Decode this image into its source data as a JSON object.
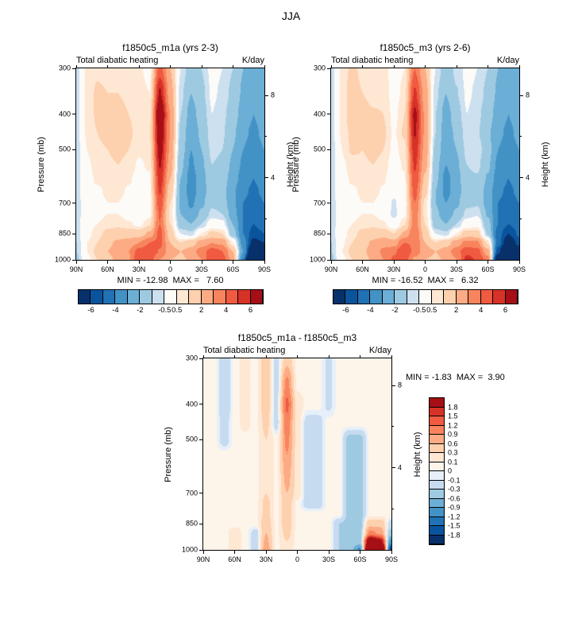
{
  "page": {
    "title": "JJA"
  },
  "panels": [
    {
      "title": "f1850c5_m1a (yrs 2-3)",
      "subtitle_left": "Total diabatic heating",
      "subtitle_right": "K/day",
      "ylabel_left": "Pressure (mb)",
      "ylabel_right": "Height (km)",
      "stats": "MIN = -12.98  MAX =   7.60"
    },
    {
      "title": "f1850c5_m3 (yrs 2-6)",
      "subtitle_left": "Total diabatic heating",
      "subtitle_right": "K/day",
      "ylabel_left": "Pressure (mb)",
      "ylabel_right": "Height (km)",
      "stats": "MIN = -16.52  MAX =   6.32"
    },
    {
      "title": "f1850c5_m1a - f1850c5_m3",
      "subtitle_left": "Total diabatic heating",
      "subtitle_right": "K/day",
      "ylabel_left": "Pressure (mb)",
      "ylabel_right": "Height (km)",
      "stats": "MIN = -1.83  MAX =  3.90"
    }
  ],
  "axes": {
    "x_ticks": [
      {
        "label": "90N",
        "lat": 90
      },
      {
        "label": "60N",
        "lat": 60
      },
      {
        "label": "30N",
        "lat": 30
      },
      {
        "label": "0",
        "lat": 0
      },
      {
        "label": "30S",
        "lat": -30
      },
      {
        "label": "60S",
        "lat": -60
      },
      {
        "label": "90S",
        "lat": -90
      }
    ],
    "pressure_ticks": [
      300,
      400,
      500,
      700,
      850,
      1000
    ],
    "pressure_top": 300,
    "pressure_bottom": 1000,
    "height_ticks_labeled": [
      8,
      4
    ],
    "height_ticks_minor": [
      6,
      2
    ]
  },
  "colorbar_tick_labels": {
    "top": [
      "-6",
      "-4",
      "-2",
      "-0.5",
      "0.5",
      "2",
      "4",
      "6"
    ],
    "diff": [
      "1.8",
      "1.5",
      "1.2",
      "0.9",
      "0.6",
      "0.3",
      "0.1",
      "0",
      "-0.1",
      "-0.3",
      "-0.6",
      "-0.9",
      "-1.2",
      "-1.5",
      "-1.8"
    ]
  },
  "chart_data": [
    {
      "type": "heatmap",
      "title": "f1850c5_m1a (yrs 2-3)",
      "variable": "Total diabatic heating",
      "units": "K/day",
      "season": "JJA",
      "min": -12.98,
      "max": 7.6,
      "lat_deg": [
        90,
        80,
        70,
        60,
        50,
        40,
        30,
        20,
        10,
        0,
        -10,
        -20,
        -30,
        -40,
        -50,
        -60,
        -70,
        -80,
        -90
      ],
      "pressure_mb": [
        300,
        350,
        400,
        450,
        500,
        550,
        600,
        650,
        700,
        750,
        800,
        850,
        900,
        950,
        1000
      ],
      "levels": [
        -6,
        -5,
        -4,
        -3,
        -2,
        -1,
        -0.5,
        0.5,
        1,
        2,
        3,
        4,
        5,
        6
      ],
      "colors": [
        "#08306b",
        "#0a549e",
        "#2171b5",
        "#4292c6",
        "#6baed6",
        "#9ecae1",
        "#cde0f0",
        "#fdfbf8",
        "#fee7d3",
        "#fdd0ae",
        "#fcab84",
        "#f8845d",
        "#ef5a41",
        "#d73228",
        "#a50f15"
      ],
      "values": [
        [
          -0.8,
          0.6,
          0.9,
          0.8,
          0.8,
          0.8,
          0.6,
          0.3,
          4.5,
          2.0,
          -0.5,
          -1.5,
          -1.0,
          -0.3,
          -0.5,
          -1.0,
          -2.0,
          -2.5,
          -2.0
        ],
        [
          -0.8,
          0.7,
          1.1,
          1.0,
          1.0,
          0.9,
          0.7,
          0.5,
          6.2,
          2.5,
          -0.8,
          -2.0,
          -1.2,
          -0.4,
          -0.6,
          -1.2,
          -2.2,
          -2.8,
          -2.2
        ],
        [
          -0.8,
          0.7,
          1.1,
          1.2,
          1.2,
          1.0,
          0.8,
          0.8,
          7.6,
          3.0,
          -1.0,
          -2.5,
          -1.5,
          -0.5,
          -0.8,
          -1.5,
          -2.5,
          -3.0,
          -2.5
        ],
        [
          -0.8,
          0.6,
          1.0,
          1.2,
          1.3,
          1.1,
          0.8,
          0.9,
          7.2,
          3.0,
          -1.2,
          -2.8,
          -1.8,
          -0.6,
          -0.9,
          -1.8,
          -2.8,
          -3.2,
          -2.8
        ],
        [
          -0.8,
          0.5,
          0.9,
          1.0,
          1.2,
          1.0,
          0.6,
          0.8,
          6.6,
          2.8,
          -1.5,
          -3.0,
          -2.0,
          -0.8,
          -1.0,
          -2.0,
          -3.0,
          -3.5,
          -3.0
        ],
        [
          -0.8,
          0.4,
          0.7,
          0.9,
          1.0,
          0.8,
          0.4,
          0.6,
          6.1,
          2.5,
          -1.8,
          -3.2,
          -2.2,
          -1.0,
          -1.2,
          -2.2,
          -3.2,
          -3.8,
          -3.2
        ],
        [
          -0.8,
          0.3,
          0.6,
          0.8,
          0.9,
          0.6,
          0.2,
          0.4,
          5.6,
          2.0,
          -2.0,
          -3.5,
          -2.5,
          -1.2,
          -1.5,
          -2.5,
          -3.5,
          -4.0,
          -3.5
        ],
        [
          -0.8,
          0.2,
          0.4,
          0.6,
          0.7,
          0.4,
          0.0,
          0.3,
          5.1,
          1.5,
          -2.2,
          -3.5,
          -2.5,
          -1.3,
          -1.6,
          -2.8,
          -3.8,
          -4.2,
          -3.8
        ],
        [
          -0.8,
          0.1,
          0.3,
          0.5,
          0.5,
          0.2,
          -0.3,
          0.2,
          4.6,
          1.0,
          -2.2,
          -3.2,
          -2.2,
          -1.2,
          -1.5,
          -2.8,
          -4.0,
          -4.5,
          -4.0
        ],
        [
          -0.8,
          0.1,
          0.3,
          0.5,
          0.5,
          0.2,
          -0.3,
          0.3,
          4.1,
          0.8,
          -2.0,
          -2.8,
          -1.8,
          -0.8,
          -1.0,
          -2.5,
          -4.0,
          -4.8,
          -4.2
        ],
        [
          -0.8,
          0.2,
          0.5,
          0.8,
          0.8,
          0.6,
          0.3,
          0.9,
          4.0,
          1.0,
          -1.5,
          -2.0,
          -1.0,
          0.0,
          -0.2,
          -2.0,
          -4.0,
          -5.0,
          -4.5
        ],
        [
          -0.8,
          0.3,
          0.8,
          1.2,
          1.5,
          1.5,
          1.5,
          2.2,
          4.4,
          1.5,
          -0.5,
          -0.8,
          0.5,
          1.2,
          1.0,
          -1.5,
          -4.0,
          -5.5,
          -5.0
        ],
        [
          -1.0,
          0.5,
          1.0,
          1.8,
          2.2,
          2.5,
          3.0,
          4.0,
          4.3,
          2.0,
          1.0,
          1.5,
          2.5,
          3.0,
          2.8,
          0.5,
          -3.5,
          -6.5,
          -6.0
        ],
        [
          -1.0,
          0.5,
          1.2,
          2.0,
          2.5,
          3.0,
          4.5,
          5.0,
          3.9,
          2.5,
          2.0,
          2.5,
          3.5,
          4.5,
          4.0,
          2.0,
          -3.0,
          -9.0,
          -8.0
        ],
        [
          -1.2,
          0.3,
          1.0,
          1.8,
          2.2,
          2.8,
          5.0,
          4.5,
          3.0,
          2.0,
          1.8,
          2.2,
          3.0,
          5.0,
          4.5,
          2.5,
          -4.0,
          -12.98,
          -10.0
        ]
      ]
    },
    {
      "type": "heatmap",
      "title": "f1850c5_m3 (yrs 2-6)",
      "variable": "Total diabatic heating",
      "units": "K/day",
      "season": "JJA",
      "min": -16.52,
      "max": 6.32,
      "lat_deg": [
        90,
        80,
        70,
        60,
        50,
        40,
        30,
        20,
        10,
        0,
        -10,
        -20,
        -30,
        -40,
        -50,
        -60,
        -70,
        -80,
        -90
      ],
      "pressure_mb": [
        300,
        350,
        400,
        450,
        500,
        550,
        600,
        650,
        700,
        750,
        800,
        850,
        900,
        950,
        1000
      ],
      "levels": [
        -6,
        -5,
        -4,
        -3,
        -2,
        -1,
        -0.5,
        0.5,
        1,
        2,
        3,
        4,
        5,
        6
      ],
      "colors": [
        "#08306b",
        "#0a549e",
        "#2171b5",
        "#4292c6",
        "#6baed6",
        "#9ecae1",
        "#cde0f0",
        "#fdfbf8",
        "#fee7d3",
        "#fdd0ae",
        "#fcab84",
        "#f8845d",
        "#ef5a41",
        "#d73228",
        "#a50f15"
      ],
      "values": [
        [
          -0.8,
          0.6,
          1.2,
          0.8,
          0.65,
          0.8,
          0.1,
          0.5,
          4.0,
          2.0,
          -0.5,
          -1.5,
          -0.85,
          -0.3,
          -0.5,
          -1.0,
          -2.0,
          -2.5,
          -2.0
        ],
        [
          -0.8,
          0.7,
          1.4,
          1.0,
          0.85,
          0.9,
          0.2,
          0.7,
          5.2,
          2.5,
          -0.8,
          -2.0,
          -1.05,
          -0.4,
          -0.6,
          -1.2,
          -2.2,
          -2.8,
          -2.2
        ],
        [
          -0.8,
          0.7,
          1.4,
          1.2,
          1.05,
          1.0,
          0.3,
          1.0,
          6.32,
          2.8,
          -1.0,
          -2.5,
          -1.35,
          -0.5,
          -0.8,
          -1.5,
          -2.5,
          -3.0,
          -2.5
        ],
        [
          -0.8,
          0.6,
          1.2,
          1.2,
          1.15,
          1.1,
          0.4,
          1.1,
          6.1,
          2.8,
          -1.0,
          -2.6,
          -1.8,
          -0.6,
          -0.9,
          -1.8,
          -2.8,
          -3.2,
          -2.8
        ],
        [
          -0.8,
          0.5,
          1.1,
          1.0,
          1.2,
          1.0,
          0.3,
          0.8,
          5.6,
          2.6,
          -1.3,
          -2.8,
          -2.0,
          -0.8,
          -0.6,
          -1.6,
          -3.0,
          -3.5,
          -3.0
        ],
        [
          -0.8,
          0.4,
          0.7,
          0.9,
          1.0,
          0.8,
          0.1,
          0.6,
          5.2,
          2.3,
          -1.6,
          -3.0,
          -2.2,
          -1.0,
          -0.8,
          -1.8,
          -3.2,
          -3.8,
          -3.2
        ],
        [
          -0.8,
          0.3,
          0.6,
          0.8,
          0.9,
          0.6,
          -0.1,
          0.4,
          4.8,
          1.8,
          -1.8,
          -3.3,
          -2.5,
          -1.2,
          -1.1,
          -2.1,
          -3.5,
          -4.0,
          -3.5
        ],
        [
          -0.8,
          0.2,
          0.4,
          0.6,
          0.7,
          0.4,
          -0.3,
          0.3,
          4.4,
          1.3,
          -2.0,
          -3.3,
          -2.5,
          -1.3,
          -1.2,
          -2.4,
          -3.8,
          -4.2,
          -3.8
        ],
        [
          -0.8,
          0.1,
          0.3,
          0.5,
          0.5,
          0.2,
          -0.6,
          0.2,
          4.0,
          0.8,
          -2.0,
          -3.0,
          -2.2,
          -1.2,
          -1.1,
          -2.4,
          -4.0,
          -4.5,
          -4.0
        ],
        [
          -0.8,
          0.0,
          0.3,
          0.5,
          0.5,
          0.2,
          -0.7,
          0.3,
          3.6,
          0.8,
          -1.8,
          -2.6,
          -1.8,
          -0.8,
          -0.6,
          -2.1,
          -4.0,
          -4.8,
          -4.2
        ],
        [
          -0.8,
          0.1,
          0.5,
          0.8,
          0.8,
          0.6,
          -0.1,
          0.9,
          3.5,
          1.0,
          -1.5,
          -2.0,
          -1.0,
          0.0,
          0.2,
          -1.6,
          -4.0,
          -5.0,
          -4.5
        ],
        [
          -0.8,
          0.2,
          0.8,
          1.2,
          1.5,
          1.5,
          1.0,
          2.2,
          3.9,
          1.5,
          -0.5,
          -0.8,
          0.5,
          1.5,
          1.4,
          -1.1,
          -4.5,
          -6.0,
          -4.8
        ],
        [
          -1.0,
          0.4,
          1.0,
          1.6,
          2.2,
          2.7,
          2.4,
          4.0,
          3.9,
          2.0,
          1.0,
          1.5,
          2.5,
          3.3,
          3.2,
          0.9,
          -4.5,
          -7.3,
          -5.6
        ],
        [
          -1.0,
          0.5,
          1.2,
          1.8,
          2.5,
          3.2,
          3.8,
          5.0,
          3.6,
          2.5,
          2.0,
          2.5,
          3.5,
          4.8,
          4.4,
          2.4,
          -5.5,
          -11.0,
          -7.0
        ],
        [
          -1.2,
          0.3,
          1.0,
          1.6,
          2.2,
          3.0,
          4.2,
          4.5,
          2.8,
          2.0,
          1.8,
          2.2,
          3.0,
          5.3,
          4.9,
          3.5,
          -7.9,
          -16.52,
          -8.2
        ]
      ]
    },
    {
      "type": "heatmap",
      "title": "f1850c5_m1a - f1850c5_m3",
      "variable": "Total diabatic heating",
      "units": "K/day",
      "season": "JJA",
      "min": -1.83,
      "max": 3.9,
      "lat_deg": [
        90,
        80,
        70,
        60,
        50,
        40,
        30,
        20,
        10,
        0,
        -10,
        -20,
        -30,
        -40,
        -50,
        -60,
        -70,
        -80,
        -90
      ],
      "pressure_mb": [
        300,
        350,
        400,
        450,
        500,
        550,
        600,
        650,
        700,
        750,
        800,
        850,
        900,
        950,
        1000
      ],
      "levels": [
        -1.8,
        -1.5,
        -1.2,
        -0.9,
        -0.6,
        -0.3,
        -0.1,
        0,
        0.1,
        0.3,
        0.6,
        0.9,
        1.2,
        1.5,
        1.8
      ],
      "colors": [
        "#08306b",
        "#0a549e",
        "#2171b5",
        "#4292c6",
        "#6baed6",
        "#9ecae1",
        "#c6dbef",
        "#e7f0f9",
        "#fdf4ea",
        "#fee7d3",
        "#fdd0ae",
        "#fcab84",
        "#f8845d",
        "#ef5a41",
        "#d73228",
        "#a50f15"
      ],
      "values": [
        [
          0.05,
          0.05,
          -0.3,
          0.05,
          0.15,
          0.05,
          0.5,
          -0.2,
          0.5,
          0.05,
          0.05,
          0.05,
          -0.15,
          0.05,
          0.05,
          0.05,
          0.05,
          0.05,
          0.05
        ],
        [
          0.05,
          0.05,
          -0.3,
          0.05,
          0.15,
          0.05,
          0.5,
          -0.2,
          1.0,
          0.05,
          0.05,
          0.05,
          -0.15,
          0.05,
          0.05,
          0.05,
          0.05,
          0.05,
          0.05
        ],
        [
          0.05,
          0.05,
          -0.3,
          0.05,
          0.15,
          0.05,
          0.5,
          -0.2,
          1.28,
          0.2,
          0.05,
          0.05,
          -0.15,
          0.05,
          0.05,
          0.05,
          0.05,
          0.05,
          0.05
        ],
        [
          0.05,
          0.05,
          -0.2,
          0.05,
          0.15,
          0.05,
          0.4,
          -0.2,
          1.1,
          0.2,
          -0.2,
          -0.2,
          0.05,
          0.05,
          0.05,
          0.05,
          0.05,
          0.05,
          0.05
        ],
        [
          0.05,
          0.05,
          -0.2,
          0.05,
          0.05,
          0.05,
          0.3,
          0.05,
          1.0,
          0.2,
          -0.2,
          -0.2,
          0.05,
          0.05,
          -0.4,
          -0.4,
          0.05,
          0.05,
          0.05
        ],
        [
          0.05,
          0.05,
          0.05,
          0.05,
          0.05,
          0.05,
          0.3,
          0.05,
          0.9,
          0.2,
          -0.2,
          -0.2,
          0.05,
          0.05,
          -0.4,
          -0.4,
          0.05,
          0.05,
          0.05
        ],
        [
          0.05,
          0.05,
          0.05,
          0.05,
          0.05,
          0.05,
          0.3,
          0.05,
          0.8,
          0.2,
          -0.2,
          -0.2,
          0.05,
          0.05,
          -0.4,
          -0.4,
          0.05,
          0.05,
          0.05
        ],
        [
          0.05,
          0.05,
          0.05,
          0.05,
          0.05,
          0.05,
          0.3,
          0.05,
          0.7,
          0.2,
          -0.2,
          -0.2,
          0.05,
          0.05,
          -0.4,
          -0.4,
          0.05,
          0.05,
          0.05
        ],
        [
          0.05,
          0.05,
          0.05,
          0.05,
          0.05,
          0.05,
          0.3,
          0.05,
          0.6,
          0.2,
          -0.2,
          -0.2,
          0.05,
          0.05,
          -0.4,
          -0.4,
          0.05,
          0.05,
          0.05
        ],
        [
          0.05,
          0.1,
          0.05,
          0.05,
          0.05,
          0.05,
          0.4,
          0.05,
          0.5,
          0.05,
          -0.2,
          -0.2,
          0.05,
          0.05,
          -0.4,
          -0.4,
          0.05,
          0.05,
          0.05
        ],
        [
          0.05,
          0.1,
          0.05,
          0.05,
          0.05,
          0.05,
          0.4,
          0.05,
          0.5,
          0.05,
          0.05,
          0.05,
          0.05,
          0.05,
          -0.4,
          -0.4,
          0.05,
          0.05,
          0.05
        ],
        [
          0.05,
          0.1,
          0.05,
          0.05,
          0.05,
          0.05,
          0.5,
          0.05,
          0.5,
          0.05,
          0.05,
          0.05,
          0.05,
          -0.3,
          -0.4,
          -0.4,
          0.5,
          0.5,
          -0.2
        ],
        [
          0.05,
          0.1,
          0.05,
          0.2,
          0.05,
          -0.2,
          0.6,
          0.05,
          0.4,
          0.05,
          0.05,
          0.05,
          0.05,
          -0.3,
          -0.4,
          -0.4,
          1.0,
          0.8,
          -0.4
        ],
        [
          0.05,
          0.05,
          0.05,
          0.2,
          0.05,
          -0.2,
          0.7,
          0.05,
          0.3,
          0.05,
          0.05,
          0.05,
          0.05,
          -0.3,
          -0.4,
          -0.4,
          2.5,
          2.0,
          -1.0
        ],
        [
          0.05,
          0.05,
          0.05,
          0.2,
          0.05,
          -0.2,
          0.8,
          0.05,
          0.2,
          0.05,
          0.05,
          0.05,
          0.05,
          -0.3,
          -0.4,
          -1.0,
          3.9,
          3.54,
          -1.83
        ]
      ]
    }
  ]
}
